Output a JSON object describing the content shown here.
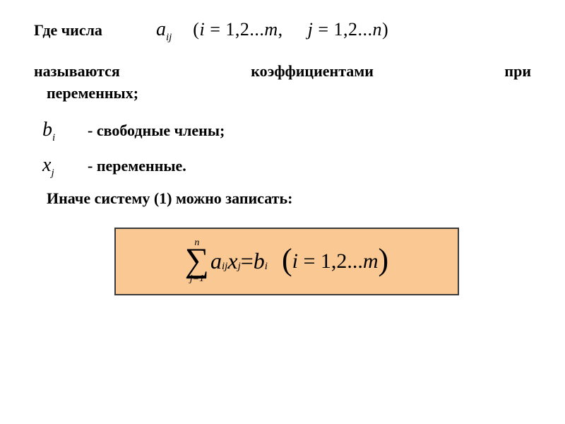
{
  "line1": {
    "lead": "Где числа",
    "a": "a",
    "sub_ij": "ij",
    "range_open": "(",
    "i_expr_pre": "i",
    "eq": " = ",
    "i_vals": "1,2...",
    "m": "m",
    "comma": ",",
    "j_expr_pre": "j",
    "j_vals": "1,2...",
    "n": "n",
    "range_close": ")"
  },
  "line2": {
    "w1": "называются",
    "w2": "коэффициентами",
    "w3": "при",
    "w4": "переменных;"
  },
  "defs": {
    "b": "b",
    "b_sub": "i",
    "b_text": "- свободные члены;",
    "x": "x",
    "x_sub": "j",
    "x_text": "- переменные."
  },
  "otherwise": "Иначе систему (1) можно записать:",
  "formula": {
    "sigma_top": "n",
    "sigma_bot": "j=1",
    "a": "a",
    "a_sub": "ij",
    "x": "x",
    "x_sub": "j",
    "eq": " = ",
    "b": "b",
    "b_sub": "i",
    "paren_open": "(",
    "i": "i",
    "eq2": " = ",
    "vals": "1,2...",
    "m": "m",
    "paren_close": ")"
  },
  "style": {
    "background": "#ffffff",
    "text_color": "#000000",
    "box_bg": "#fac893",
    "box_border": "#3a3a3a",
    "body_fontsize_pt": 16,
    "math_fontsize_pt": 22,
    "formula_fontsize_pt": 24,
    "sigma_fontsize_pt": 36
  }
}
